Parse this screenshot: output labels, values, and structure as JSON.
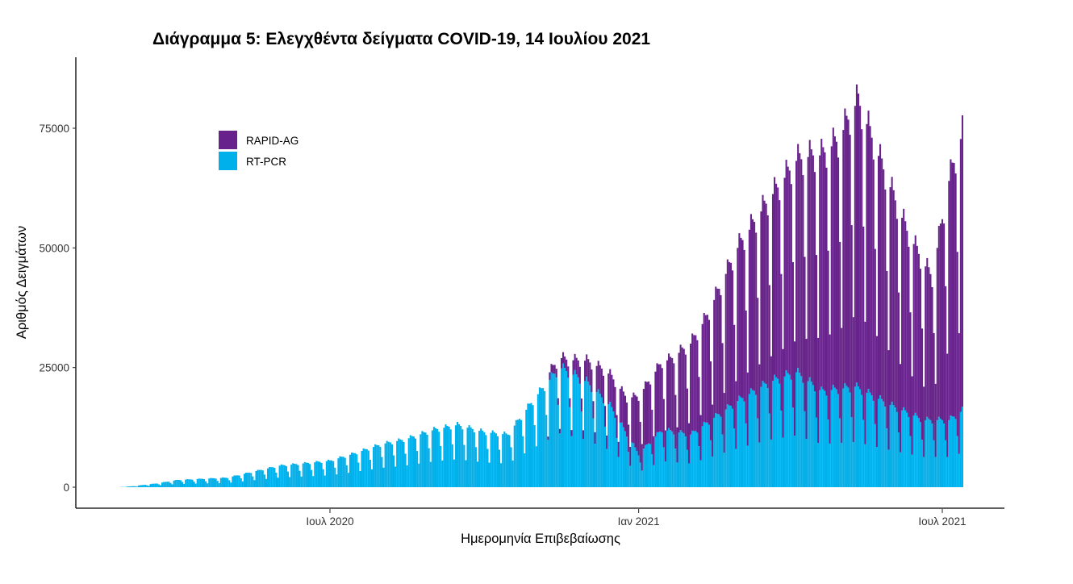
{
  "chart_data": {
    "type": "bar",
    "stacked": true,
    "title": "Διάγραμμα 5: Ελεγχθέντα δείγματα COVID-19, 14 Ιουλίου 2021",
    "xlabel": "Ημερομηνία Επιβεβαίωσης",
    "ylabel": "Αριθμός Δειγμάτων",
    "ylim": [
      0,
      86000
    ],
    "yticks": [
      0,
      25000,
      50000,
      75000
    ],
    "ytick_labels": [
      "0",
      "25000",
      "50000",
      "75000"
    ],
    "xticks": [
      "2020-07-01",
      "2021-01-01",
      "2021-07-01"
    ],
    "xtick_labels": [
      "Ιουλ 2020",
      "Ιαν 2021",
      "Ιουλ 2021"
    ],
    "xlim": [
      "2020-02-16",
      "2021-07-31"
    ],
    "grid": false,
    "legend_position": "top-left",
    "series": [
      {
        "name": "RAPID-AG",
        "color": "#68228B",
        "points": [
          {
            "date": "2020-02-26",
            "value": 0
          },
          {
            "date": "2020-11-07",
            "value": 0
          },
          {
            "date": "2020-11-08",
            "value": 1500
          },
          {
            "date": "2020-11-20",
            "value": 2500
          },
          {
            "date": "2020-12-10",
            "value": 6000
          },
          {
            "date": "2020-12-25",
            "value": 7500
          },
          {
            "date": "2021-01-01",
            "value": 12000
          },
          {
            "date": "2021-01-20",
            "value": 15000
          },
          {
            "date": "2021-02-10",
            "value": 22000
          },
          {
            "date": "2021-03-01",
            "value": 32000
          },
          {
            "date": "2021-03-25",
            "value": 40000
          },
          {
            "date": "2021-04-15",
            "value": 48000
          },
          {
            "date": "2021-04-30",
            "value": 52000
          },
          {
            "date": "2021-05-12",
            "value": 60000
          },
          {
            "date": "2021-05-25",
            "value": 50000
          },
          {
            "date": "2021-06-10",
            "value": 38000
          },
          {
            "date": "2021-06-25",
            "value": 30000
          },
          {
            "date": "2021-07-05",
            "value": 50000
          },
          {
            "date": "2021-07-13",
            "value": 58000
          }
        ]
      },
      {
        "name": "RT-PCR",
        "color": "#00B0EB",
        "points": [
          {
            "date": "2020-02-26",
            "value": 0
          },
          {
            "date": "2020-03-05",
            "value": 200
          },
          {
            "date": "2020-03-20",
            "value": 800
          },
          {
            "date": "2020-04-01",
            "value": 1500
          },
          {
            "date": "2020-05-01",
            "value": 2000
          },
          {
            "date": "2020-06-01",
            "value": 4500
          },
          {
            "date": "2020-07-01",
            "value": 5500
          },
          {
            "date": "2020-07-15",
            "value": 7000
          },
          {
            "date": "2020-08-01",
            "value": 9000
          },
          {
            "date": "2020-08-15",
            "value": 10000
          },
          {
            "date": "2020-09-01",
            "value": 12000
          },
          {
            "date": "2020-09-15",
            "value": 13000
          },
          {
            "date": "2020-10-01",
            "value": 11500
          },
          {
            "date": "2020-10-15",
            "value": 11000
          },
          {
            "date": "2020-11-01",
            "value": 19000
          },
          {
            "date": "2020-11-15",
            "value": 25000
          },
          {
            "date": "2020-12-01",
            "value": 22000
          },
          {
            "date": "2020-12-15",
            "value": 17000
          },
          {
            "date": "2021-01-01",
            "value": 7000
          },
          {
            "date": "2021-01-15",
            "value": 12000
          },
          {
            "date": "2021-02-01",
            "value": 11000
          },
          {
            "date": "2021-03-01",
            "value": 18000
          },
          {
            "date": "2021-03-20",
            "value": 22000
          },
          {
            "date": "2021-04-05",
            "value": 24000
          },
          {
            "date": "2021-04-20",
            "value": 20000
          },
          {
            "date": "2021-05-10",
            "value": 21000
          },
          {
            "date": "2021-06-01",
            "value": 17000
          },
          {
            "date": "2021-06-20",
            "value": 14000
          },
          {
            "date": "2021-07-05",
            "value": 14000
          },
          {
            "date": "2021-07-13",
            "value": 16000
          }
        ]
      }
    ]
  }
}
